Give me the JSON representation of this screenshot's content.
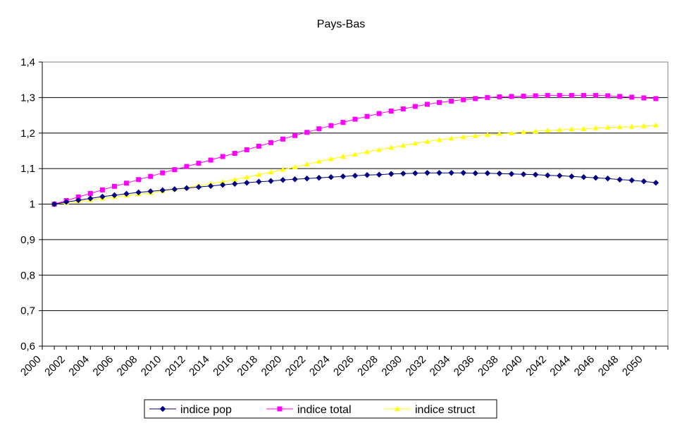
{
  "chart_data": {
    "type": "line",
    "title": "Pays-Bas",
    "xlabel": "",
    "ylabel": "",
    "ylim": [
      0.6,
      1.4
    ],
    "y_ticks": [
      "0,6",
      "0,7",
      "0,8",
      "0,9",
      "1",
      "1,1",
      "1,2",
      "1,3",
      "1,4"
    ],
    "x_ticks": [
      "2000",
      "2002",
      "2004",
      "2006",
      "2008",
      "2010",
      "2012",
      "2014",
      "2016",
      "2018",
      "2020",
      "2022",
      "2024",
      "2026",
      "2028",
      "2030",
      "2032",
      "2034",
      "2036",
      "2038",
      "2040",
      "2042",
      "2044",
      "2046",
      "2048",
      "2050"
    ],
    "x": [
      2001,
      2002,
      2003,
      2004,
      2005,
      2006,
      2007,
      2008,
      2009,
      2010,
      2011,
      2012,
      2013,
      2014,
      2015,
      2016,
      2017,
      2018,
      2019,
      2020,
      2021,
      2022,
      2023,
      2024,
      2025,
      2026,
      2027,
      2028,
      2029,
      2030,
      2031,
      2032,
      2033,
      2034,
      2035,
      2036,
      2037,
      2038,
      2039,
      2040,
      2041,
      2042,
      2043,
      2044,
      2045,
      2046,
      2047,
      2048,
      2049,
      2050,
      2051
    ],
    "grid": "horizontal",
    "legend_position": "bottom",
    "series": [
      {
        "name": "indice pop",
        "color": "#000080",
        "marker": "diamond",
        "values": [
          1.0,
          1.006,
          1.011,
          1.016,
          1.021,
          1.025,
          1.029,
          1.033,
          1.036,
          1.039,
          1.042,
          1.045,
          1.048,
          1.051,
          1.054,
          1.057,
          1.06,
          1.063,
          1.065,
          1.068,
          1.07,
          1.072,
          1.074,
          1.076,
          1.078,
          1.08,
          1.082,
          1.083,
          1.085,
          1.086,
          1.087,
          1.088,
          1.088,
          1.088,
          1.088,
          1.087,
          1.087,
          1.086,
          1.085,
          1.084,
          1.083,
          1.081,
          1.08,
          1.078,
          1.076,
          1.074,
          1.072,
          1.069,
          1.067,
          1.064,
          1.06
        ]
      },
      {
        "name": "indice total",
        "color": "#FF00FF",
        "marker": "square",
        "values": [
          1.0,
          1.01,
          1.02,
          1.03,
          1.04,
          1.05,
          1.059,
          1.069,
          1.078,
          1.088,
          1.097,
          1.106,
          1.115,
          1.124,
          1.134,
          1.143,
          1.153,
          1.163,
          1.173,
          1.183,
          1.193,
          1.202,
          1.212,
          1.221,
          1.23,
          1.239,
          1.247,
          1.255,
          1.262,
          1.268,
          1.275,
          1.281,
          1.286,
          1.29,
          1.294,
          1.297,
          1.3,
          1.302,
          1.303,
          1.304,
          1.305,
          1.306,
          1.306,
          1.306,
          1.306,
          1.306,
          1.305,
          1.303,
          1.301,
          1.299,
          1.297
        ]
      },
      {
        "name": "indice struct",
        "color": "#FFFF00",
        "marker": "triangle",
        "values": [
          1.0,
          1.004,
          1.008,
          1.012,
          1.016,
          1.02,
          1.024,
          1.028,
          1.032,
          1.037,
          1.042,
          1.047,
          1.052,
          1.057,
          1.063,
          1.069,
          1.076,
          1.083,
          1.09,
          1.097,
          1.104,
          1.112,
          1.12,
          1.127,
          1.134,
          1.14,
          1.147,
          1.153,
          1.159,
          1.165,
          1.171,
          1.176,
          1.181,
          1.185,
          1.189,
          1.192,
          1.195,
          1.198,
          1.2,
          1.203,
          1.205,
          1.207,
          1.209,
          1.211,
          1.212,
          1.214,
          1.216,
          1.217,
          1.218,
          1.22,
          1.222
        ]
      }
    ]
  }
}
